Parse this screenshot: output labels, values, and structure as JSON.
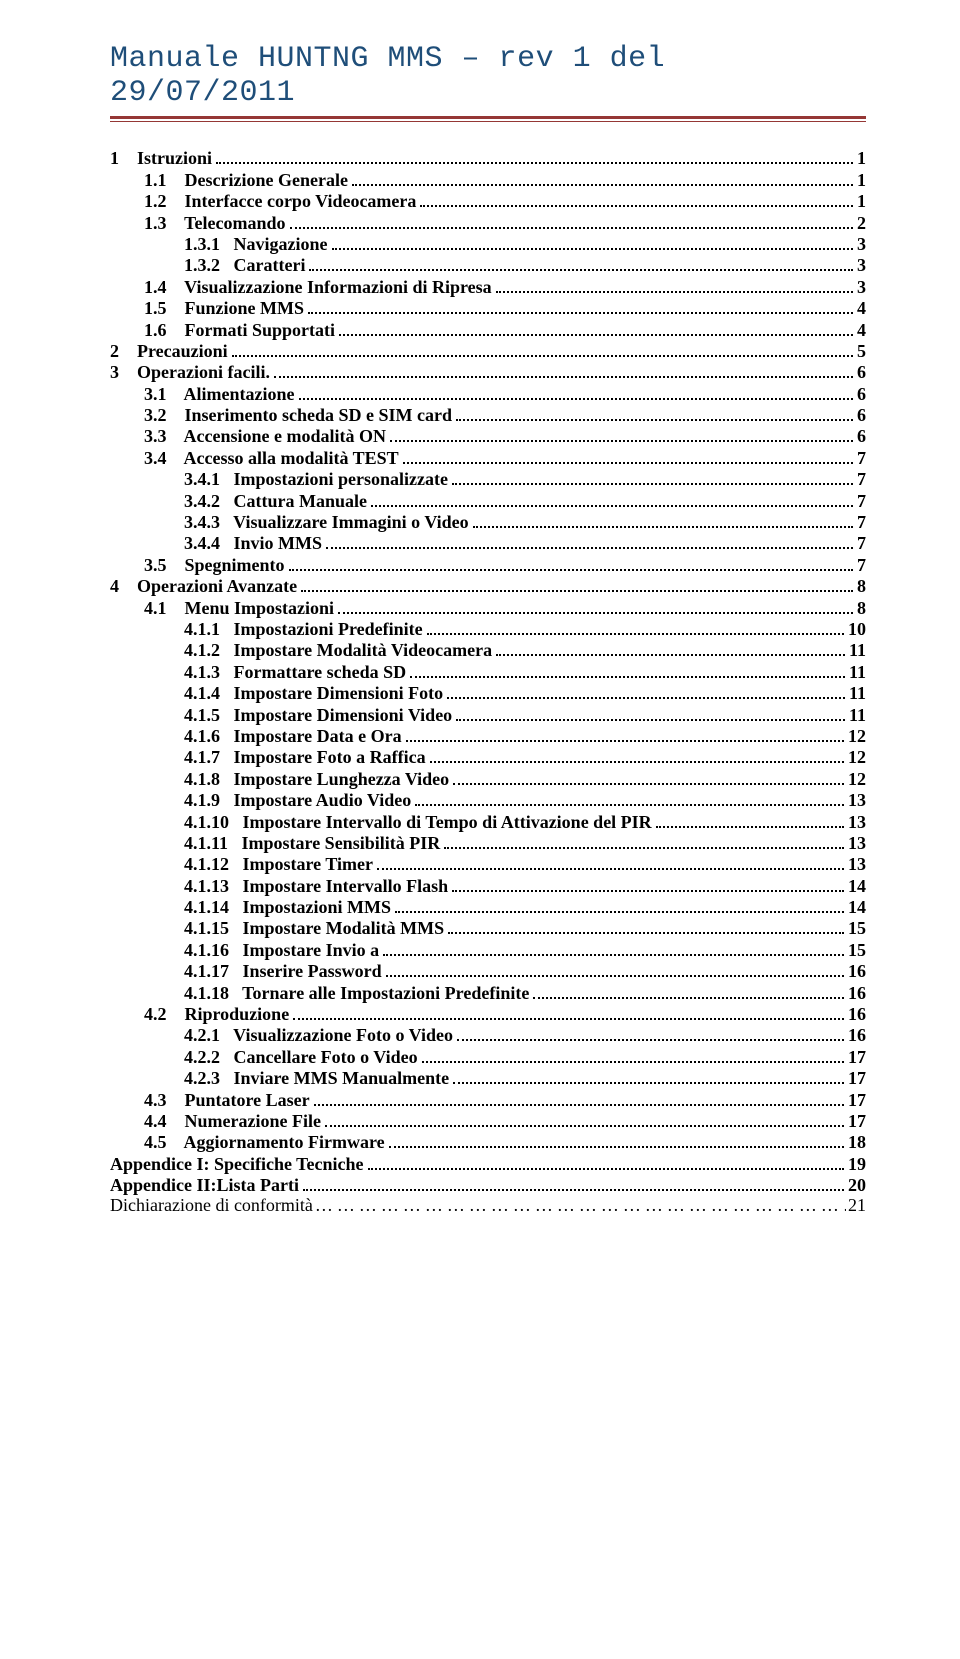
{
  "header": {
    "title": "Manuale HUNTNG MMS – rev 1 del 29/07/2011",
    "title_color": "#1f4e79",
    "rule_color": "#953735",
    "font_family": "Courier New",
    "font_size_pt": 22
  },
  "toc": {
    "font_family": "Times New Roman",
    "font_size_pt": 13,
    "entries": [
      {
        "level": 0,
        "num": "1",
        "label": "Istruzioni",
        "page": "1"
      },
      {
        "level": 1,
        "num": "1.1",
        "label": "Descrizione Generale",
        "page": "1"
      },
      {
        "level": 1,
        "num": "1.2",
        "label": "Interfacce corpo Videocamera",
        "page": "1"
      },
      {
        "level": 1,
        "num": "1.3",
        "label": "Telecomando",
        "page": "2"
      },
      {
        "level": 2,
        "num": "1.3.1",
        "label": "Navigazione",
        "page": "3"
      },
      {
        "level": 2,
        "num": "1.3.2",
        "label": "Caratteri",
        "page": "3"
      },
      {
        "level": 1,
        "num": "1.4",
        "label": "Visualizzazione Informazioni di Ripresa",
        "page": "3"
      },
      {
        "level": 1,
        "num": "1.5",
        "label": "Funzione MMS",
        "page": "4"
      },
      {
        "level": 1,
        "num": "1.6",
        "label": "Formati Supportati",
        "page": "4"
      },
      {
        "level": 0,
        "num": "2",
        "label": "Precauzioni",
        "page": "5"
      },
      {
        "level": 0,
        "num": "3",
        "label": "Operazioni facili.",
        "page": "6"
      },
      {
        "level": 1,
        "num": "3.1",
        "label": "Alimentazione",
        "page": "6"
      },
      {
        "level": 1,
        "num": "3.2",
        "label": "Inserimento scheda SD e SIM card",
        "page": "6"
      },
      {
        "level": 1,
        "num": "3.3",
        "label": "Accensione e modalità ON",
        "page": "6"
      },
      {
        "level": 1,
        "num": "3.4",
        "label": "Accesso alla modalità TEST",
        "page": "7"
      },
      {
        "level": 2,
        "num": "3.4.1",
        "label": "Impostazioni personalizzate",
        "page": "7"
      },
      {
        "level": 2,
        "num": "3.4.2",
        "label": "Cattura Manuale",
        "page": "7"
      },
      {
        "level": 2,
        "num": "3.4.3",
        "label": "Visualizzare Immagini o Video",
        "page": "7"
      },
      {
        "level": 2,
        "num": "3.4.4",
        "label": "Invio MMS",
        "page": "7"
      },
      {
        "level": 1,
        "num": "3.5",
        "label": "Spegnimento",
        "page": "7"
      },
      {
        "level": 0,
        "num": "4",
        "label": "Operazioni Avanzate",
        "page": "8"
      },
      {
        "level": 1,
        "num": "4.1",
        "label": "Menu Impostazioni",
        "page": "8"
      },
      {
        "level": 2,
        "num": "4.1.1",
        "label": "Impostazioni Predefinite",
        "page": "10"
      },
      {
        "level": 2,
        "num": "4.1.2",
        "label": "Impostare Modalità Videocamera",
        "page": "11"
      },
      {
        "level": 2,
        "num": "4.1.3",
        "label": "Formattare scheda SD",
        "page": "11"
      },
      {
        "level": 2,
        "num": "4.1.4",
        "label": "Impostare Dimensioni Foto",
        "page": "11"
      },
      {
        "level": 2,
        "num": "4.1.5",
        "label": "Impostare Dimensioni Video",
        "page": "11"
      },
      {
        "level": 2,
        "num": "4.1.6",
        "label": "Impostare Data e Ora",
        "page": "12"
      },
      {
        "level": 2,
        "num": "4.1.7",
        "label": "Impostare Foto a Raffica",
        "page": "12"
      },
      {
        "level": 2,
        "num": "4.1.8",
        "label": "Impostare Lunghezza Video",
        "page": "12"
      },
      {
        "level": 2,
        "num": "4.1.9",
        "label": "Impostare Audio Video",
        "page": "13"
      },
      {
        "level": 2,
        "num": "4.1.10",
        "label": "Impostare Intervallo di Tempo di Attivazione del PIR",
        "page": "13"
      },
      {
        "level": 2,
        "num": "4.1.11",
        "label": "Impostare Sensibilità PIR",
        "page": "13"
      },
      {
        "level": 2,
        "num": "4.1.12",
        "label": "Impostare Timer",
        "page": "13"
      },
      {
        "level": 2,
        "num": "4.1.13",
        "label": "Impostare Intervallo Flash",
        "page": "14"
      },
      {
        "level": 2,
        "num": "4.1.14",
        "label": "Impostazioni MMS",
        "page": "14"
      },
      {
        "level": 2,
        "num": "4.1.15",
        "label": "Impostare Modalità MMS",
        "page": "15"
      },
      {
        "level": 2,
        "num": "4.1.16",
        "label": "Impostare Invio a",
        "page": "15"
      },
      {
        "level": 2,
        "num": "4.1.17",
        "label": "Inserire Password",
        "page": "16"
      },
      {
        "level": 2,
        "num": "4.1.18",
        "label": "Tornare alle Impostazioni Predefinite",
        "page": "16"
      },
      {
        "level": 1,
        "num": "4.2",
        "label": "Riproduzione",
        "page": "16"
      },
      {
        "level": 2,
        "num": "4.2.1",
        "label": "Visualizzazione Foto o Video",
        "page": "16"
      },
      {
        "level": 2,
        "num": "4.2.2",
        "label": "Cancellare Foto o Video",
        "page": "17"
      },
      {
        "level": 2,
        "num": "4.2.3",
        "label": "Inviare MMS Manualmente",
        "page": "17"
      },
      {
        "level": 1,
        "num": "4.3",
        "label": "Puntatore Laser",
        "page": "17"
      },
      {
        "level": 1,
        "num": "4.4",
        "label": "Numerazione File",
        "page": "17"
      },
      {
        "level": 1,
        "num": "4.5",
        "label": "Aggiornamento Firmware",
        "page": "18"
      }
    ],
    "appendices": [
      {
        "label": "Appendice I: Specifiche Tecniche",
        "page": "19"
      },
      {
        "label": "Appendice II:Lista Parti",
        "page": "20"
      }
    ],
    "declaration": {
      "label": "Dichiarazione di conformità",
      "page": "21"
    }
  }
}
